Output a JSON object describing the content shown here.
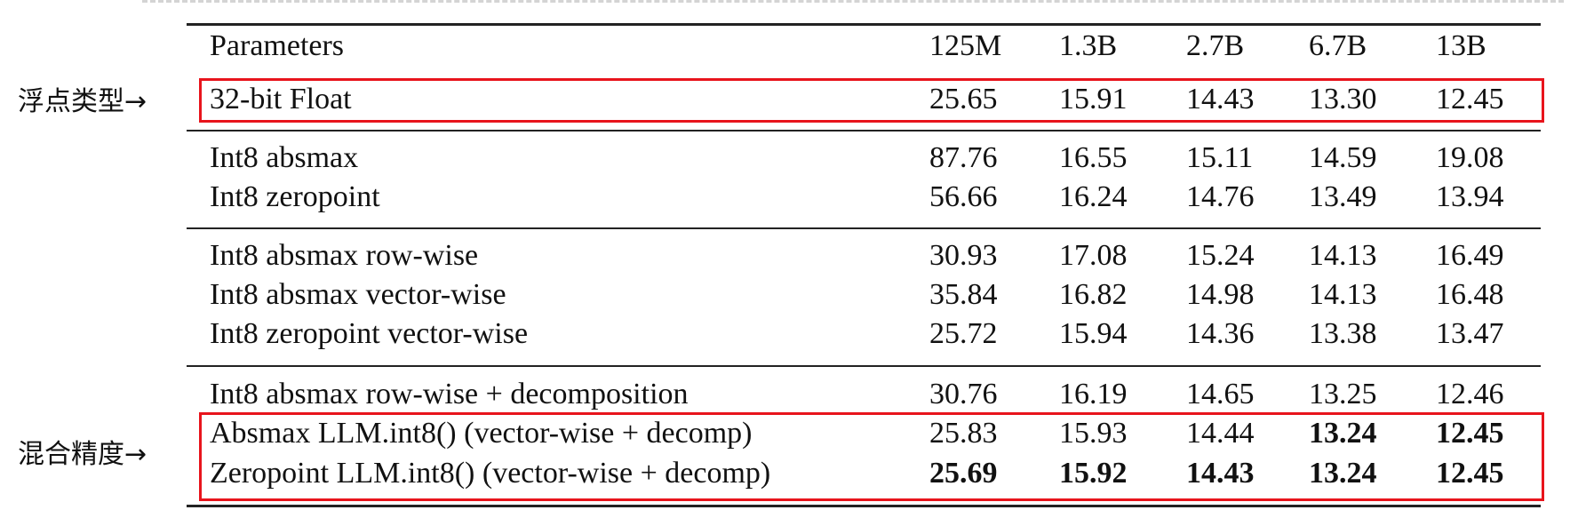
{
  "annotations": {
    "float_label": "浮点类型→",
    "mixed_label": "混合精度→"
  },
  "table": {
    "header": {
      "label": "Parameters",
      "cols": [
        "125M",
        "1.3B",
        "2.7B",
        "6.7B",
        "13B"
      ]
    },
    "rows": [
      {
        "label": "32-bit Float",
        "values": [
          "25.65",
          "15.91",
          "14.43",
          "13.30",
          "12.45"
        ]
      },
      {
        "label": "Int8 absmax",
        "values": [
          "87.76",
          "16.55",
          "15.11",
          "14.59",
          "19.08"
        ]
      },
      {
        "label": "Int8 zeropoint",
        "values": [
          "56.66",
          "16.24",
          "14.76",
          "13.49",
          "13.94"
        ]
      },
      {
        "label": "Int8 absmax row-wise",
        "values": [
          "30.93",
          "17.08",
          "15.24",
          "14.13",
          "16.49"
        ]
      },
      {
        "label": "Int8 absmax vector-wise",
        "values": [
          "35.84",
          "16.82",
          "14.98",
          "14.13",
          "16.48"
        ]
      },
      {
        "label": "Int8 zeropoint vector-wise",
        "values": [
          "25.72",
          "15.94",
          "14.36",
          "13.38",
          "13.47"
        ]
      },
      {
        "label": "Int8 absmax row-wise + decomposition",
        "values": [
          "30.76",
          "16.19",
          "14.65",
          "13.25",
          "12.46"
        ]
      },
      {
        "label": "Absmax LLM.int8() (vector-wise + decomp)",
        "values": [
          "25.83",
          "15.93",
          "14.44",
          "13.24",
          "12.45"
        ]
      },
      {
        "label": "Zeropoint LLM.int8() (vector-wise + decomp)",
        "values": [
          "25.69",
          "15.92",
          "14.43",
          "13.24",
          "12.45"
        ]
      }
    ]
  }
}
